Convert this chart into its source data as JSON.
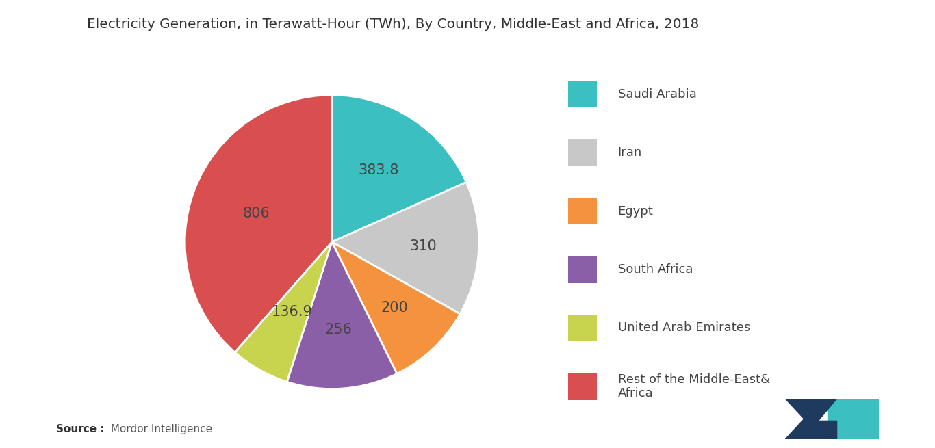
{
  "title": "Electricity Generation, in Terawatt-Hour (TWh), By Country, Middle-East and Africa, 2018",
  "values": [
    383.8,
    310,
    200,
    256,
    136.9,
    806
  ],
  "colors": [
    "#3bbfc0",
    "#c8c8c8",
    "#f5923e",
    "#8b5ea8",
    "#c8d44e",
    "#d94f4f"
  ],
  "label_texts": [
    "383.8",
    "310",
    "200",
    "256",
    "136.9",
    "806"
  ],
  "legend_labels": [
    "Saudi Arabia",
    "Iran",
    "Egypt",
    "South Africa",
    "United Arab Emirates",
    "Rest of the Middle-East&\nAfrica"
  ],
  "source_bold": "Source :",
  "source_rest": " Mordor Intelligence",
  "background_color": "#ffffff",
  "title_fontsize": 14.5,
  "label_fontsize": 15,
  "legend_fontsize": 13
}
